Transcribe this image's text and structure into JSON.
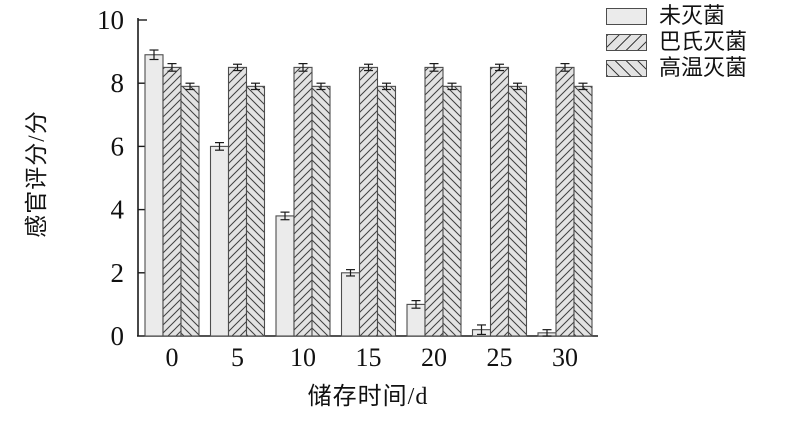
{
  "chart_data": {
    "type": "bar",
    "title": "",
    "categories": [
      "0",
      "5",
      "10",
      "15",
      "20",
      "25",
      "30"
    ],
    "series": [
      {
        "name": "未灭菌",
        "pattern": "plain",
        "values": [
          8.9,
          6.0,
          3.8,
          2.0,
          1.0,
          0.2,
          0.1
        ],
        "errors": [
          0.15,
          0.12,
          0.12,
          0.1,
          0.12,
          0.15,
          0.1
        ]
      },
      {
        "name": "巴氏灭菌",
        "pattern": "hatch-forward",
        "values": [
          8.5,
          8.5,
          8.5,
          8.5,
          8.5,
          8.5,
          8.5
        ],
        "errors": [
          0.12,
          0.1,
          0.12,
          0.1,
          0.12,
          0.1,
          0.12
        ]
      },
      {
        "name": "高温灭菌",
        "pattern": "hatch-back",
        "values": [
          7.9,
          7.9,
          7.9,
          7.9,
          7.9,
          7.9,
          7.9
        ],
        "errors": [
          0.1,
          0.1,
          0.1,
          0.1,
          0.1,
          0.1,
          0.1
        ]
      }
    ],
    "xlabel": "储存时间/d",
    "ylabel": "感官评分/分",
    "ylim": [
      0,
      10
    ],
    "yticks": [
      0,
      2,
      4,
      6,
      8,
      10
    ],
    "grid": false,
    "legend_position": "top-right",
    "error_bars": true,
    "colors": {
      "bar_fill": "#ebebeb",
      "hatch_fill": "#e3e3e3",
      "bar_border": "#4d4d4d",
      "hatch_line": "#3f3f3f",
      "axis": "#1a1a1a",
      "error_bar": "#1a1a1a",
      "text": "#111111",
      "background": "#ffffff"
    }
  }
}
